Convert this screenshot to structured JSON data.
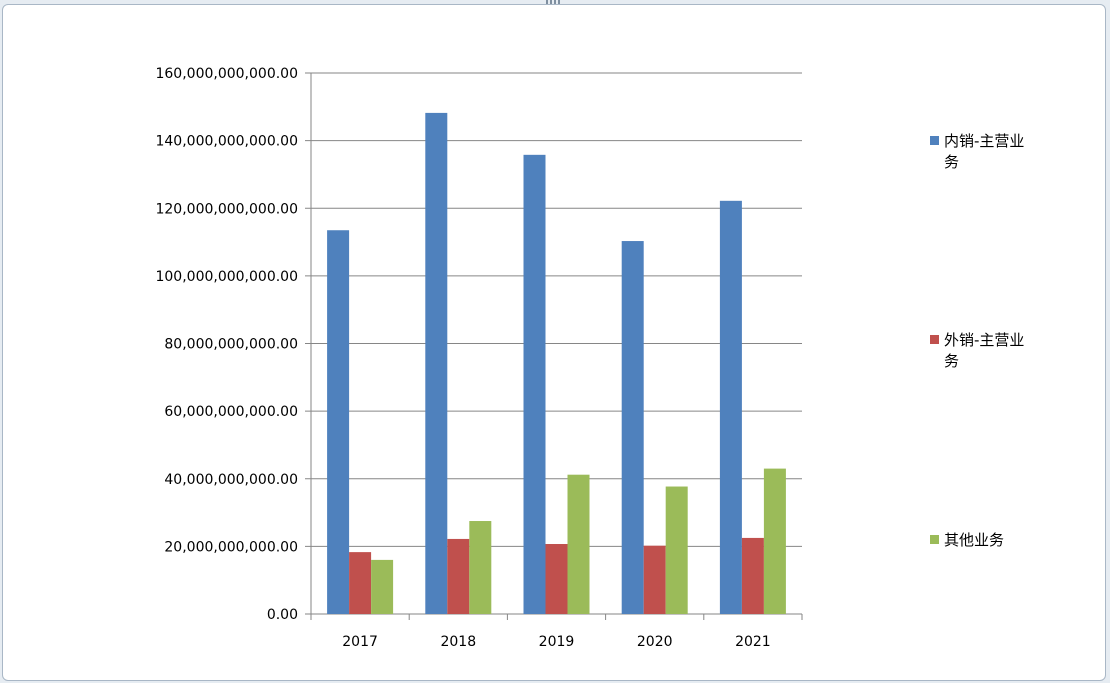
{
  "chart_data": {
    "type": "bar",
    "title": "",
    "xlabel": "",
    "ylabel": "",
    "categories": [
      "2017",
      "2018",
      "2019",
      "2020",
      "2021"
    ],
    "ylim": [
      0,
      160000000000
    ],
    "yticks": [
      0,
      20000000000,
      40000000000,
      60000000000,
      80000000000,
      100000000000,
      120000000000,
      140000000000,
      160000000000
    ],
    "ytick_labels": [
      "0.00",
      "20,000,000,000.00",
      "40,000,000,000.00",
      "60,000,000,000.00",
      "80,000,000,000.00",
      "100,000,000,000.00",
      "120,000,000,000.00",
      "140,000,000,000.00",
      "160,000,000,000.00"
    ],
    "grid": true,
    "legend_position": "right",
    "series": [
      {
        "name": "内销-主营业务",
        "legend_lines": [
          "内销-主营业",
          "务"
        ],
        "color": "#4f81bd",
        "values": [
          113500000000,
          148200000000,
          135800000000,
          110300000000,
          122200000000
        ]
      },
      {
        "name": "外销-主营业务",
        "legend_lines": [
          "外销-主营业",
          "务"
        ],
        "color": "#c0504d",
        "values": [
          18300000000,
          22200000000,
          20700000000,
          20200000000,
          22500000000
        ]
      },
      {
        "name": "其他业务",
        "legend_lines": [
          "其他业务"
        ],
        "color": "#9bbb59",
        "values": [
          16000000000,
          27500000000,
          41200000000,
          37700000000,
          43000000000
        ]
      }
    ]
  }
}
